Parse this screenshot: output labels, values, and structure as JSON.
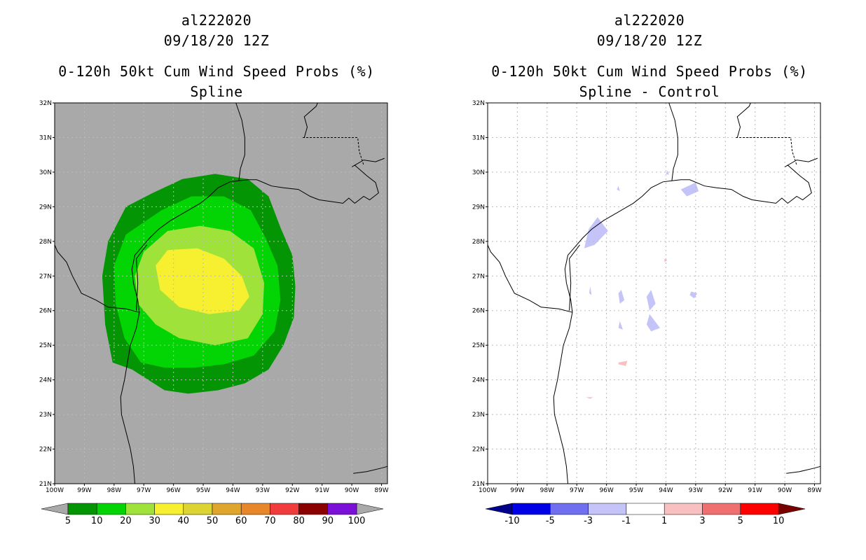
{
  "panels": {
    "left": {
      "storm_id": "al222020",
      "datetime": "09/18/20 12Z",
      "product": "0-120h 50kt Cum Wind Speed Probs (%)",
      "subtitle": "Spline",
      "ocean_color": "#a9a9a9",
      "colorbar": {
        "colors": [
          "#039503",
          "#03d403",
          "#9fe33a",
          "#f6f030",
          "#dcd432",
          "#e0a52c",
          "#e8862a",
          "#f03c3c",
          "#8b0000",
          "#7b10d8"
        ],
        "end_colors": [
          "#a9a9a9",
          "#a9a9a9"
        ],
        "labels": [
          "5",
          "10",
          "20",
          "30",
          "40",
          "50",
          "60",
          "70",
          "80",
          "90",
          "100"
        ]
      },
      "prob_contours": [
        {
          "level": "5",
          "color": "#039503"
        },
        {
          "level": "10",
          "color": "#03d403"
        },
        {
          "level": "20",
          "color": "#9fe33a"
        },
        {
          "level": "30",
          "color": "#f6f030"
        }
      ]
    },
    "right": {
      "storm_id": "al222020",
      "datetime": "09/18/20 12Z",
      "product": "0-120h 50kt Cum Wind Speed Probs (%)",
      "subtitle": "Spline - Control",
      "ocean_color": "#ffffff",
      "colorbar": {
        "colors": [
          "#0000e6",
          "#6f6ff0",
          "#c4c4f8",
          "#ffffff",
          "#f8c0c0",
          "#f07070",
          "#ff0000"
        ],
        "end_colors": [
          "#00008b",
          "#7a0000"
        ],
        "labels": [
          "-10",
          "-5",
          "-3",
          "-1",
          "1",
          "3",
          "5",
          "10"
        ]
      }
    }
  },
  "axes": {
    "lon_labels": [
      "100W",
      "99W",
      "98W",
      "97W",
      "96W",
      "95W",
      "94W",
      "93W",
      "92W",
      "91W",
      "90W",
      "89W"
    ],
    "lat_labels": [
      "32N",
      "31N",
      "30N",
      "29N",
      "28N",
      "27N",
      "26N",
      "25N",
      "24N",
      "23N",
      "22N",
      "21N"
    ],
    "lon_range": [
      -100,
      -88.8
    ],
    "lat_range": [
      21,
      32
    ]
  }
}
